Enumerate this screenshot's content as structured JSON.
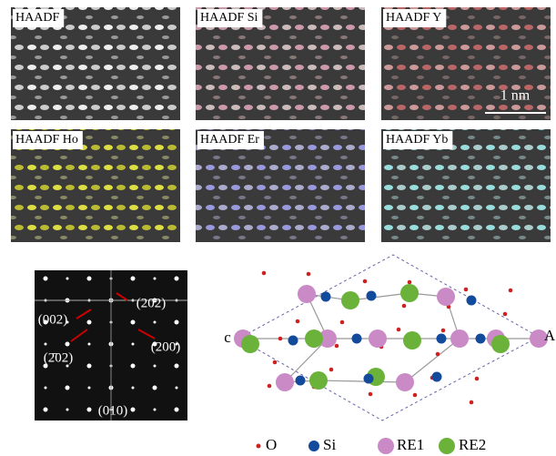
{
  "panels": [
    {
      "label": "HAADF"
    },
    {
      "label": "HAADF Si"
    },
    {
      "label": "HAADF Y"
    },
    {
      "label": "HAADF Ho"
    },
    {
      "label": "HAADF Er"
    },
    {
      "label": "HAADF Yb"
    }
  ],
  "scale_bar": "1 nm",
  "diffraction": {
    "labels": [
      "(202)",
      "(002)",
      "(2̄02)",
      "(200)",
      "(010)"
    ]
  },
  "structure": {
    "labels": [
      "c",
      "A"
    ]
  },
  "legend": [
    "O",
    "Si",
    "RE1",
    "RE2"
  ]
}
